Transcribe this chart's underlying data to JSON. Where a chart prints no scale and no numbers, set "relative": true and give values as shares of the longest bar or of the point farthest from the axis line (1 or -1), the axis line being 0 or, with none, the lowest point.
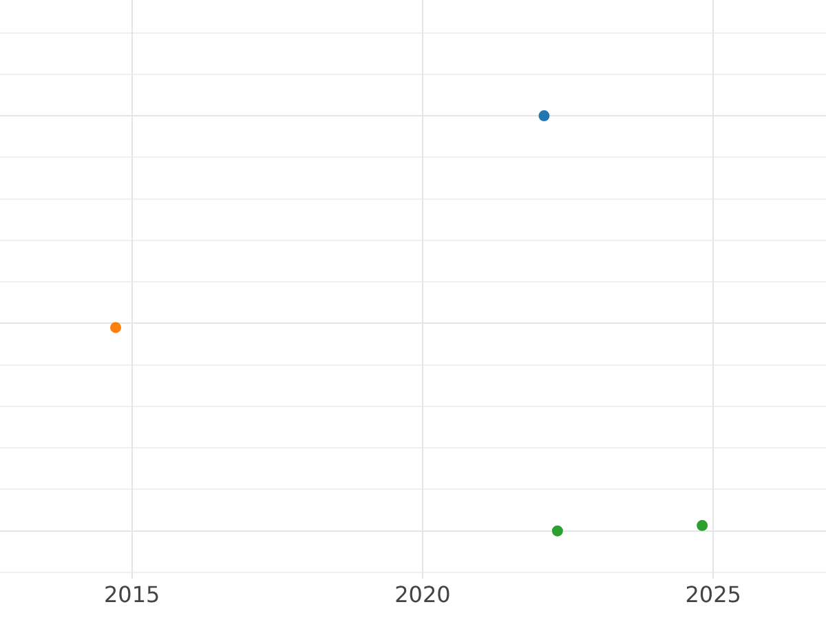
{
  "chart_data": {
    "type": "scatter",
    "relative": true,
    "xlim": [
      2012.73,
      2026.94
    ],
    "xticks": [
      2015,
      2020,
      2025
    ],
    "grid": true,
    "marker": "circle",
    "series": [
      {
        "color": "#1f77b4",
        "x": [
          2022.09
        ],
        "values": [
          1
        ]
      },
      {
        "color": "#ff7f0e",
        "x": [
          2014.72
        ],
        "values": [
          0.49
        ]
      },
      {
        "color": "#2ca02c",
        "x": [
          2022.32,
          2024.81
        ],
        "values": [
          0,
          0.013
        ]
      }
    ]
  }
}
